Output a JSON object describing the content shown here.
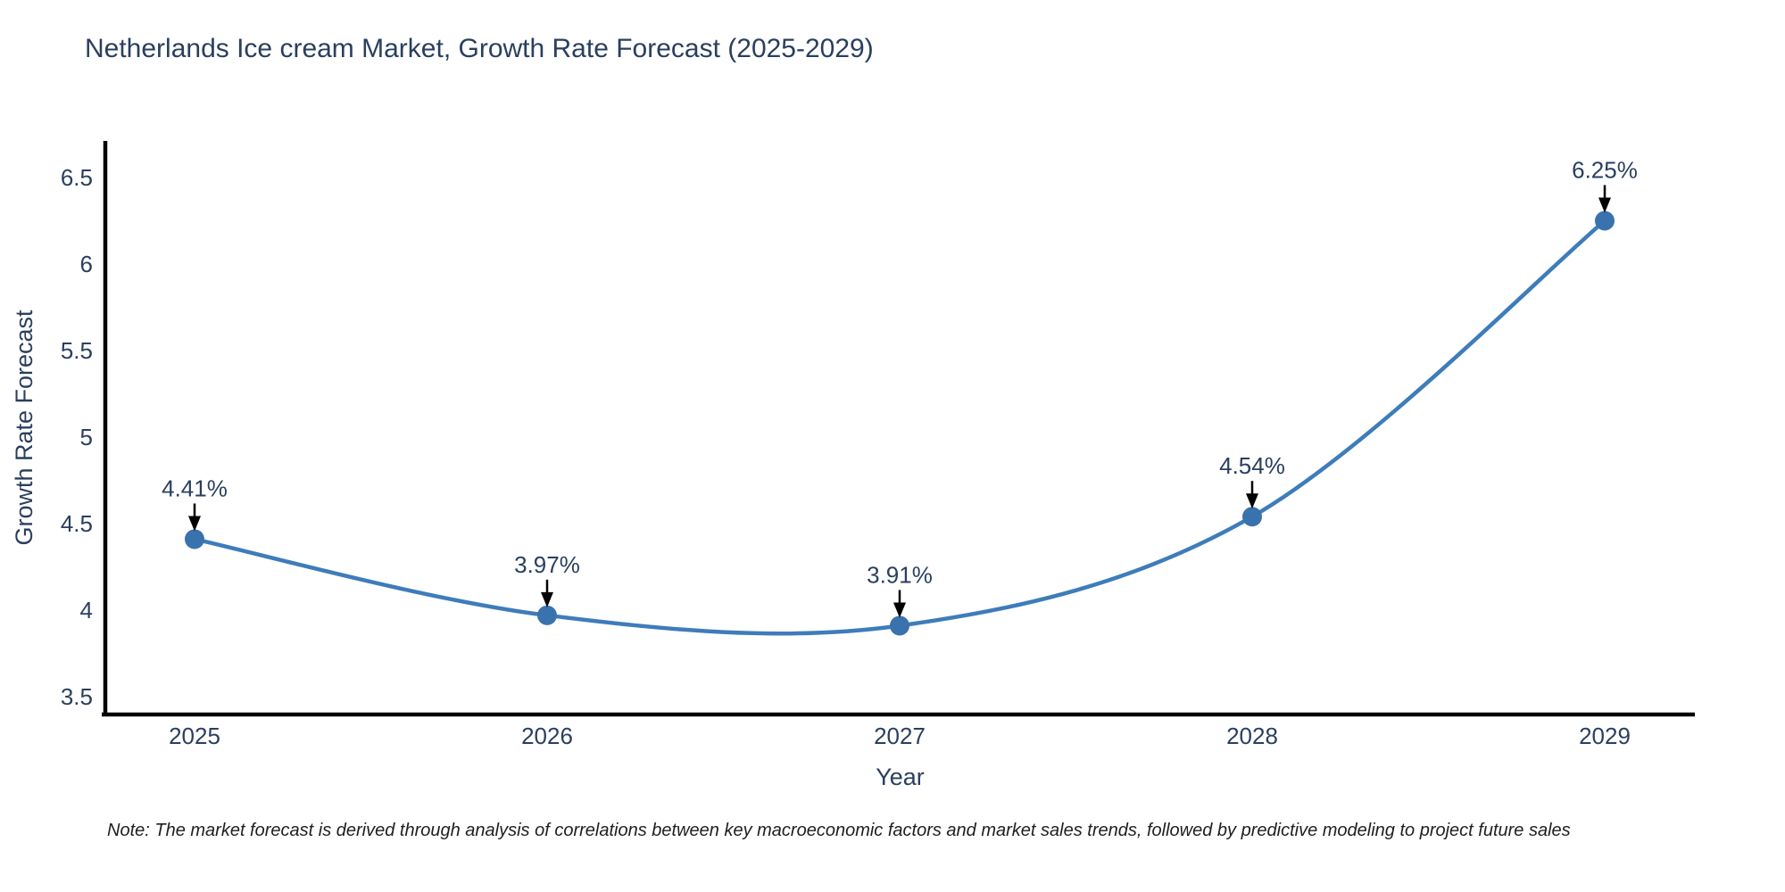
{
  "title": "Netherlands Ice cream Market, Growth Rate Forecast (2025-2029)",
  "note": "Note: The market forecast is derived through analysis of correlations between key macroeconomic factors and market sales trends, followed by predictive modeling to project future sales",
  "chart_data": {
    "type": "line",
    "title": "Netherlands Ice cream Market, Growth Rate Forecast (2025-2029)",
    "x": [
      "2025",
      "2026",
      "2027",
      "2028",
      "2029"
    ],
    "values": [
      4.41,
      3.97,
      3.91,
      4.54,
      6.25
    ],
    "point_labels": [
      "4.41%",
      "3.97%",
      "3.91%",
      "4.54%",
      "6.25%"
    ],
    "xlabel": "Year",
    "ylabel": "Growth Rate Forecast",
    "yticks": [
      3.5,
      4,
      4.5,
      5,
      5.5,
      6,
      6.5
    ],
    "ytick_labels": [
      "3.5",
      "4",
      "4.5",
      "5",
      "5.5",
      "6",
      "6.5"
    ],
    "ylim": [
      3.39,
      6.71
    ],
    "grid": false,
    "legend": false,
    "line_shape": "spline",
    "line_color": "#3e7cba",
    "marker_color": "#3a72ae",
    "axis_color": "#000000",
    "text_color": "#2a3f5f",
    "annotation_arrow_color": "#000000"
  }
}
